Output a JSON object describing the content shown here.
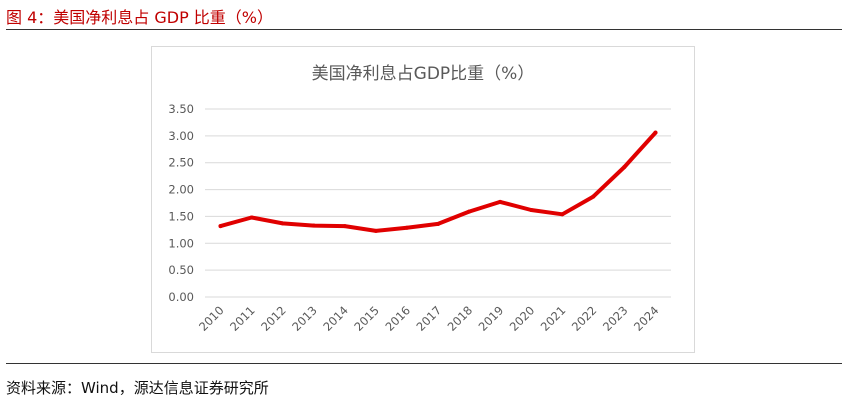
{
  "figure": {
    "title": "图 4：美国净利息占 GDP 比重（%）",
    "source": "资料来源：Wind，源达信息证券研究所"
  },
  "colors": {
    "title": "#c00000",
    "line": "#e00000",
    "grid": "#d9d9d9",
    "text": "#595959"
  },
  "chart_data": {
    "type": "line",
    "title": "美国净利息占GDP比重（%）",
    "xlabel": "",
    "ylabel": "",
    "categories": [
      "2010",
      "2011",
      "2012",
      "2013",
      "2014",
      "2015",
      "2016",
      "2017",
      "2018",
      "2019",
      "2020",
      "2021",
      "2022",
      "2023",
      "2024"
    ],
    "series": [
      {
        "values": [
          1.32,
          1.48,
          1.37,
          1.33,
          1.32,
          1.23,
          1.29,
          1.36,
          1.59,
          1.77,
          1.62,
          1.54,
          1.87,
          2.42,
          3.06
        ]
      }
    ],
    "ylim": [
      0,
      3.5
    ],
    "yticks": [
      "0.00",
      "0.50",
      "1.00",
      "1.50",
      "2.00",
      "2.50",
      "3.00",
      "3.50"
    ],
    "grid": true,
    "legend": "none"
  }
}
